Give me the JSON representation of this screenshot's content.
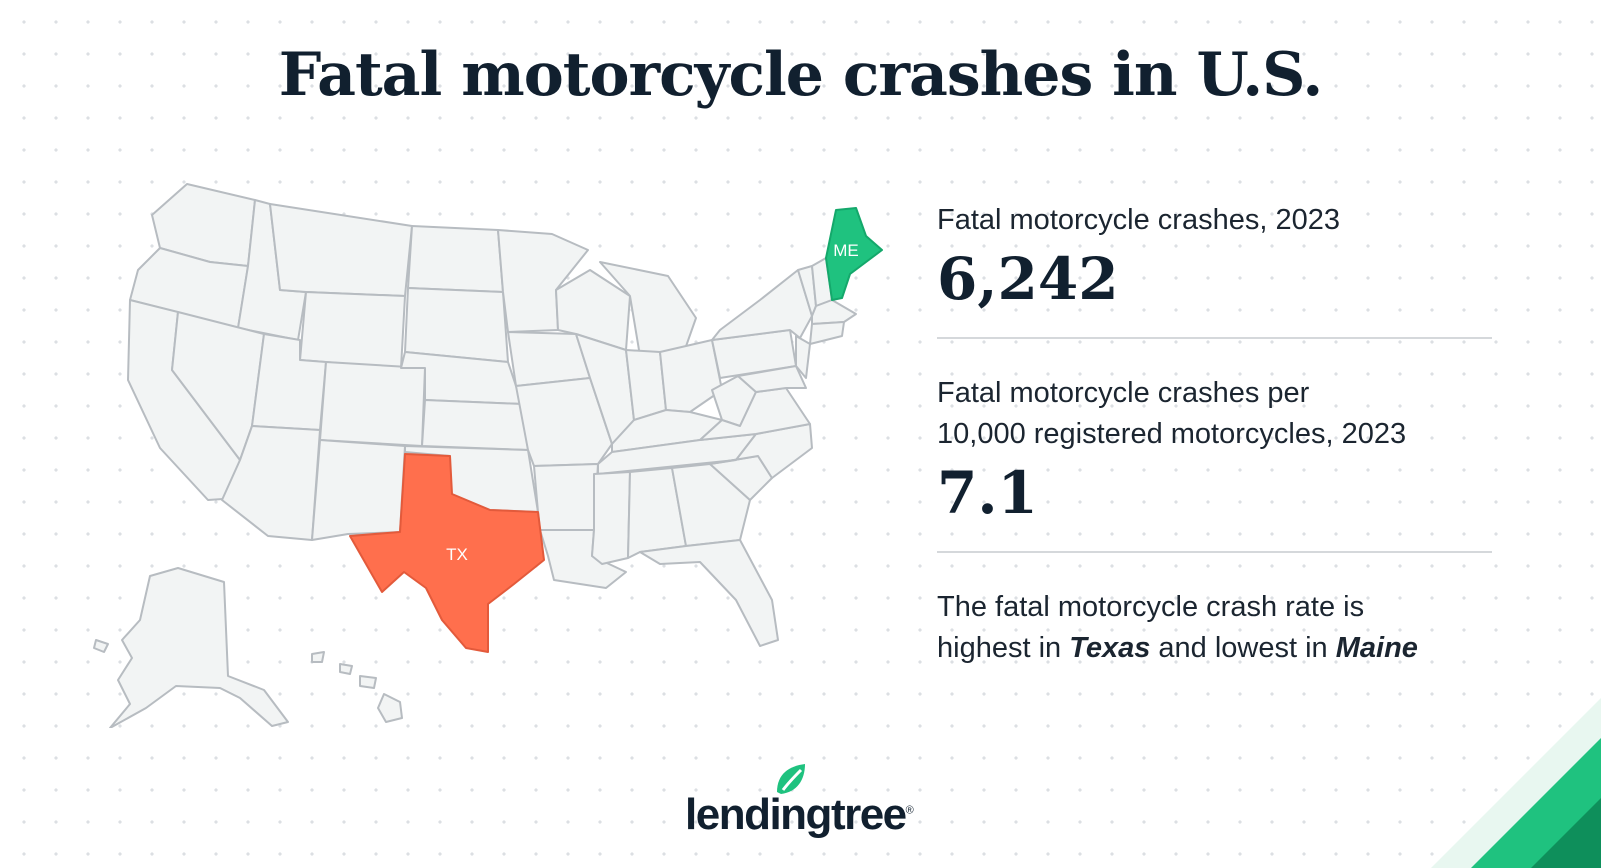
{
  "title": "Fatal motorcycle crashes in U.S.",
  "map": {
    "highlight_high": {
      "abbr": "TX",
      "name": "Texas",
      "color": "#ff6f4d"
    },
    "highlight_low": {
      "abbr": "ME",
      "name": "Maine",
      "color": "#1fc27f"
    },
    "base_color": "#f2f4f4"
  },
  "stats": [
    {
      "label": "Fatal motorcycle crashes, 2023",
      "value": "6,242"
    },
    {
      "label_line1": "Fatal motorcycle crashes per",
      "label_line2": "10,000 registered motorcycles, 2023",
      "value": "7.1"
    }
  ],
  "note": {
    "prefix": "The fatal motorcycle crash rate is",
    "mid_start": "highest in ",
    "high_state": "Texas",
    "mid": " and lowest in ",
    "low_state": "Maine"
  },
  "logo": {
    "text_left": "lending",
    "text_right": "tree",
    "reg": "®"
  },
  "colors": {
    "navy": "#11202f",
    "accent_green": "#1fc27f",
    "accent_dark_green": "#0e8f5b"
  }
}
